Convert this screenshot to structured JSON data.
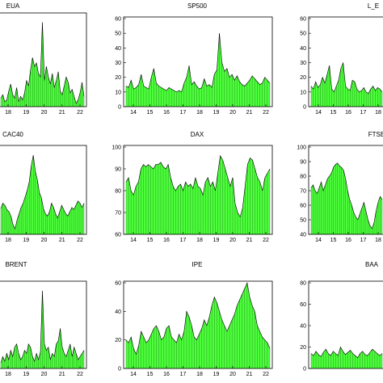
{
  "colors": {
    "fill": "#4cff3a",
    "outline": "#000000",
    "background": "#ffffff"
  },
  "chart_data": [
    {
      "type": "area",
      "title": "EUA",
      "x_ticks": [
        "18",
        "19",
        "20",
        "21",
        "22"
      ],
      "y_ticks": [],
      "values": [
        12,
        14,
        10,
        11,
        16,
        20,
        14,
        12,
        18,
        10,
        13,
        11,
        15,
        22,
        19,
        28,
        35,
        30,
        32,
        26,
        24,
        55,
        22,
        30,
        24,
        20,
        26,
        18,
        22,
        27,
        16,
        14,
        19,
        24,
        21,
        15,
        17,
        13,
        9,
        11,
        15,
        21,
        13
      ]
    },
    {
      "type": "area",
      "title": "SP500",
      "x_ticks": [
        "14",
        "15",
        "16",
        "17",
        "18",
        "19",
        "20",
        "21",
        "22"
      ],
      "y_ticks": [
        "0",
        "10",
        "20",
        "30",
        "40",
        "50",
        "60"
      ],
      "ylim": [
        0,
        60
      ],
      "values": [
        14,
        13,
        18,
        12,
        13,
        15,
        22,
        14,
        13,
        12,
        20,
        26,
        16,
        14,
        13,
        12,
        11,
        13,
        12,
        11,
        10,
        11,
        10,
        16,
        20,
        28,
        15,
        17,
        14,
        12,
        13,
        19,
        14,
        15,
        13,
        22,
        25,
        50,
        30,
        24,
        26,
        20,
        22,
        18,
        21,
        17,
        15,
        14,
        16,
        18,
        21,
        19,
        17,
        15,
        16,
        20,
        18,
        16
      ]
    },
    {
      "type": "area",
      "title": "L_E",
      "x_ticks": [
        "14",
        "15",
        "16",
        "17",
        "18"
      ],
      "y_ticks": [
        "0",
        "10",
        "20",
        "30",
        "40",
        "50",
        "60"
      ],
      "ylim": [
        0,
        60
      ],
      "values": [
        14,
        12,
        17,
        13,
        15,
        20,
        16,
        22,
        28,
        12,
        10,
        14,
        18,
        26,
        30,
        14,
        12,
        11,
        18,
        17,
        12,
        10,
        11,
        13,
        10,
        9,
        12,
        14,
        11,
        13,
        12,
        10
      ]
    },
    {
      "type": "area",
      "title": "CAC40",
      "x_ticks": [
        "18",
        "19",
        "20",
        "21",
        "22"
      ],
      "y_ticks": [],
      "values": [
        45,
        50,
        48,
        44,
        42,
        38,
        30,
        26,
        34,
        40,
        46,
        50,
        56,
        62,
        70,
        85,
        95,
        80,
        72,
        60,
        55,
        45,
        40,
        38,
        42,
        50,
        46,
        40,
        36,
        42,
        48,
        44,
        40,
        38,
        42,
        46,
        44,
        48,
        52,
        50,
        46,
        50
      ]
    },
    {
      "type": "area",
      "title": "DAX",
      "x_ticks": [
        "14",
        "15",
        "16",
        "17",
        "18",
        "19",
        "20",
        "21",
        "22"
      ],
      "y_ticks": [
        "60",
        "70",
        "80",
        "90",
        "100"
      ],
      "ylim": [
        60,
        100
      ],
      "values": [
        84,
        86,
        80,
        78,
        82,
        84,
        90,
        92,
        91,
        92,
        91,
        90,
        92,
        92,
        93,
        91,
        90,
        92,
        86,
        82,
        80,
        82,
        83,
        80,
        84,
        82,
        83,
        81,
        86,
        82,
        81,
        78,
        84,
        86,
        82,
        84,
        80,
        88,
        96,
        94,
        90,
        86,
        82,
        86,
        74,
        70,
        68,
        72,
        82,
        92,
        95,
        94,
        90,
        86,
        84,
        80,
        86,
        88,
        90
      ]
    },
    {
      "type": "area",
      "title": "FTSE",
      "x_ticks": [
        "14",
        "15",
        "16",
        "17",
        "18"
      ],
      "y_ticks": [
        "40",
        "50",
        "60",
        "70",
        "80",
        "90",
        "100"
      ],
      "ylim": [
        40,
        100
      ],
      "values": [
        72,
        74,
        70,
        68,
        72,
        76,
        70,
        74,
        78,
        80,
        82,
        86,
        88,
        89,
        87,
        86,
        84,
        78,
        70,
        64,
        60,
        55,
        52,
        50,
        54,
        58,
        62,
        56,
        50,
        46,
        44,
        48,
        56,
        62,
        66,
        64
      ]
    },
    {
      "type": "area",
      "title": "BRENT",
      "x_ticks": [
        "18",
        "19",
        "20",
        "21",
        "22"
      ],
      "y_ticks": [],
      "values": [
        18,
        22,
        19,
        24,
        20,
        26,
        22,
        28,
        30,
        24,
        20,
        22,
        26,
        24,
        30,
        28,
        22,
        19,
        24,
        20,
        25,
        64,
        30,
        26,
        28,
        20,
        24,
        22,
        30,
        32,
        40,
        28,
        24,
        22,
        26,
        30,
        22,
        28,
        24,
        20,
        22,
        24,
        26
      ]
    },
    {
      "type": "area",
      "title": "IPE",
      "x_ticks": [
        "14",
        "15",
        "16",
        "17",
        "18",
        "19",
        "20",
        "21",
        "22"
      ],
      "y_ticks": [
        "0",
        "20",
        "40",
        "60"
      ],
      "ylim": [
        0,
        60
      ],
      "values": [
        20,
        18,
        22,
        14,
        10,
        16,
        26,
        22,
        18,
        20,
        24,
        28,
        30,
        26,
        20,
        22,
        28,
        30,
        22,
        20,
        18,
        24,
        20,
        26,
        40,
        36,
        30,
        22,
        20,
        24,
        28,
        34,
        30,
        36,
        44,
        50,
        46,
        40,
        34,
        30,
        26,
        30,
        34,
        38,
        44,
        48,
        52,
        56,
        60,
        50,
        44,
        40,
        30,
        26,
        22,
        20,
        18,
        14
      ]
    },
    {
      "type": "area",
      "title": "BAA",
      "x_ticks": [],
      "y_ticks": [
        "0",
        "20",
        "40",
        "60",
        "80"
      ],
      "ylim": [
        0,
        80
      ],
      "values": [
        14,
        12,
        16,
        13,
        11,
        15,
        18,
        14,
        12,
        16,
        14,
        12,
        20,
        16,
        13,
        15,
        17,
        14,
        12,
        10,
        14,
        16,
        13,
        12,
        15,
        18,
        16,
        14,
        12,
        14
      ]
    }
  ]
}
